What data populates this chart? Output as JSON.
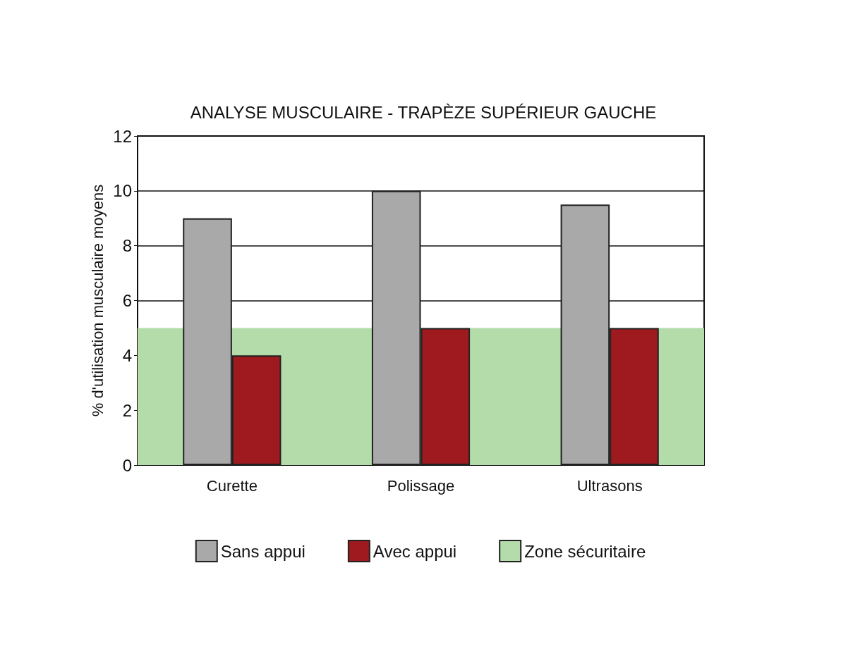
{
  "chart_data": {
    "type": "bar",
    "title": "ANALYSE MUSCULAIRE - TRAPÈZE SUPÉRIEUR GAUCHE",
    "ylabel": "% d'utilisation musculaire moyens",
    "categories": [
      "Curette",
      "Polissage",
      "Ultrasons"
    ],
    "series": [
      {
        "name": "Sans appui",
        "color": "#a9a9a9",
        "values": [
          9,
          10,
          9.5
        ]
      },
      {
        "name": "Avec appui",
        "color": "#9e1a1e",
        "values": [
          4,
          5,
          5
        ]
      }
    ],
    "ylim": [
      0,
      12
    ],
    "yticks": [
      0,
      2,
      4,
      6,
      8,
      10,
      12
    ],
    "grid": "y",
    "legend": "bottom",
    "bands": [
      {
        "axis": "y",
        "from": 0,
        "to": 5,
        "label": "Zone sécuritaire",
        "color": "#b3dcaa"
      }
    ]
  }
}
